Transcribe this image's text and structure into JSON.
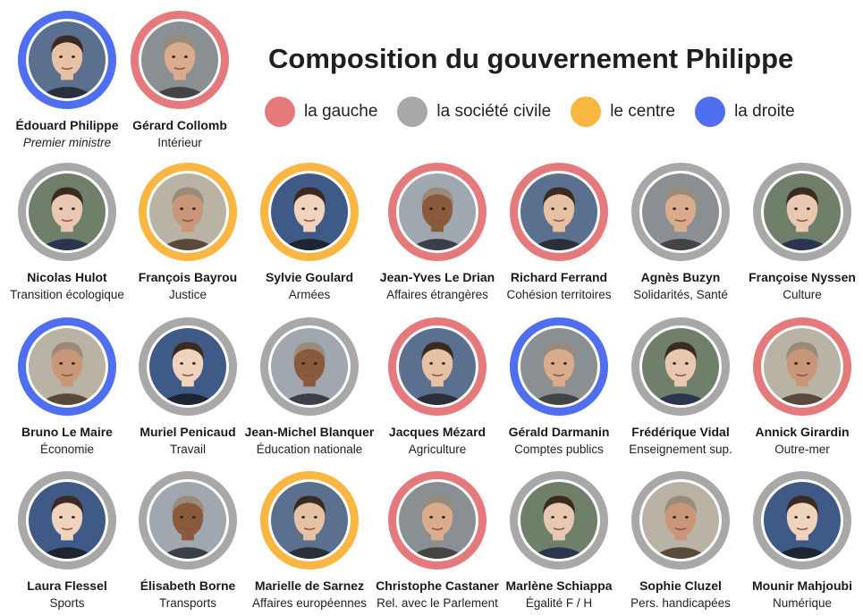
{
  "title": "Composition du gouvernement Philippe",
  "legend": [
    {
      "label": "la gauche",
      "color": "#e57a7d",
      "icon": "red-dot-icon"
    },
    {
      "label": "la société civile",
      "color": "#a8a8a8",
      "icon": "grey-dot-icon"
    },
    {
      "label": "le centre",
      "color": "#f9b642",
      "icon": "yellow-dot-icon"
    },
    {
      "label": "la droite",
      "color": "#4f6ff0",
      "icon": "blue-dot-icon"
    }
  ],
  "colors": {
    "gauche": "#e57a7d",
    "civile": "#a8a8a8",
    "centre": "#f9b642",
    "droite": "#4f6ff0"
  },
  "people": [
    {
      "name": "Édouard Philippe",
      "role": "Premier ministre",
      "group": "droite",
      "italic": true
    },
    {
      "name": "Gérard Collomb",
      "role": "Intérieur",
      "group": "gauche"
    },
    {
      "name": "Nicolas Hulot",
      "role": "Transition écologique",
      "group": "civile"
    },
    {
      "name": "François Bayrou",
      "role": "Justice",
      "group": "centre"
    },
    {
      "name": "Sylvie Goulard",
      "role": "Armées",
      "group": "centre"
    },
    {
      "name": "Jean-Yves Le Drian",
      "role": "Affaires étrangères",
      "group": "gauche"
    },
    {
      "name": "Richard Ferrand",
      "role": "Cohésion territoires",
      "group": "gauche"
    },
    {
      "name": "Agnès Buzyn",
      "role": "Solidarités, Santé",
      "group": "civile"
    },
    {
      "name": "Françoise Nyssen",
      "role": "Culture",
      "group": "civile"
    },
    {
      "name": "Bruno Le Maire",
      "role": "Économie",
      "group": "droite"
    },
    {
      "name": "Muriel Penicaud",
      "role": "Travail",
      "group": "civile"
    },
    {
      "name": "Jean-Michel Blanquer",
      "role": "Éducation nationale",
      "group": "civile"
    },
    {
      "name": "Jacques Mézard",
      "role": "Agriculture",
      "group": "gauche"
    },
    {
      "name": "Gérald Darmanin",
      "role": "Comptes publics",
      "group": "droite"
    },
    {
      "name": "Frédérique Vidal",
      "role": "Enseignement sup.",
      "group": "civile"
    },
    {
      "name": "Annick Girardin",
      "role": "Outre-mer",
      "group": "gauche"
    },
    {
      "name": "Laura Flessel",
      "role": "Sports",
      "group": "civile"
    },
    {
      "name": "Élisabeth Borne",
      "role": "Transports",
      "group": "civile"
    },
    {
      "name": "Marielle de Sarnez",
      "role": "Affaires européennes",
      "group": "centre"
    },
    {
      "name": "Christophe Castaner",
      "role": "Rel. avec le Parlement",
      "group": "gauche"
    },
    {
      "name": "Marlène Schiappa",
      "role": "Égalité F / H",
      "group": "civile"
    },
    {
      "name": "Sophie Cluzel",
      "role": "Pers. handicapées",
      "group": "civile"
    },
    {
      "name": "Mounir Mahjoubi",
      "role": "Numérique",
      "group": "civile"
    }
  ]
}
